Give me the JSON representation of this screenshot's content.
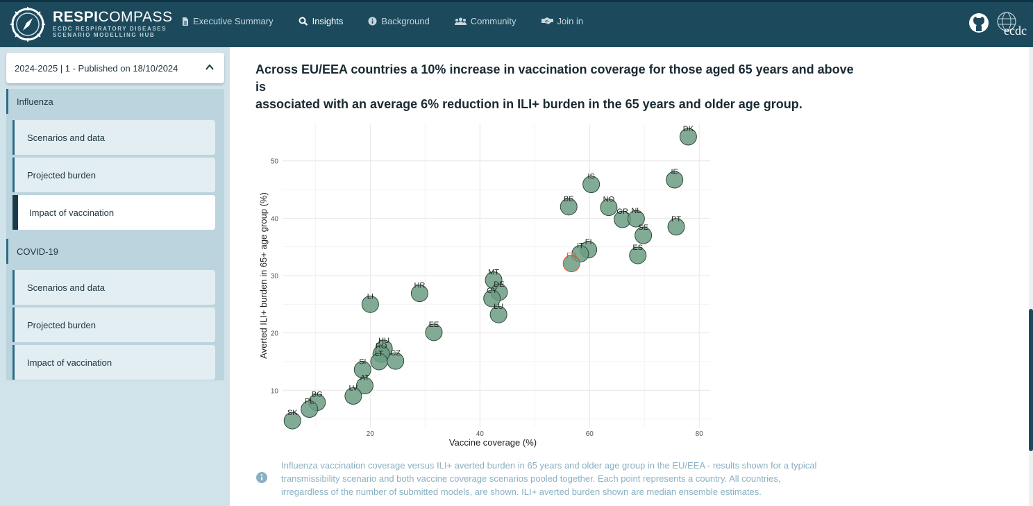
{
  "brand": {
    "name_bold": "RESPI",
    "name_light": "COMPASS",
    "sub1": "ECDC RESPIRATORY DISEASES",
    "sub2": "SCENARIO MODELLING HUB"
  },
  "nav": [
    {
      "label": "Executive Summary",
      "icon": "document-icon"
    },
    {
      "label": "Insights",
      "icon": "magnifier-icon"
    },
    {
      "label": "Background",
      "icon": "info-icon"
    },
    {
      "label": "Community",
      "icon": "people-icon"
    },
    {
      "label": "Join in",
      "icon": "handshake-icon"
    }
  ],
  "header_right": {
    "github": "github-icon",
    "ecdc": "ecdc"
  },
  "sidebar": {
    "dropdown": "2024-2025 | 1 - Published on 18/10/2024",
    "groups": [
      {
        "label": "Influenza",
        "items": [
          "Scenarios and data",
          "Projected burden",
          "Impact of vaccination"
        ]
      },
      {
        "label": "COVID-19",
        "items": [
          "Scenarios and data",
          "Projected burden",
          "Impact of vaccination"
        ]
      }
    ]
  },
  "main": {
    "headline_line1": "Across  EU/EEA countries a 10% increase in vaccination coverage for those aged 65 years and above is",
    "headline_line2": "associated with an average 6% reduction in  ILI+ burden in the 65 years and older age group.",
    "caption_line1": "Influenza vaccination coverage versus  ILI+ averted burden in 65 years and older age group in the  EU/EEA - results shown for a typical",
    "caption_line2": "transmissibility scenario and both vaccine coverage scenarios pooled together.  Each point represents a country. All countries,",
    "caption_line3": "irregardless of the number of submitted models, are shown.  ILI+ averted burden shown are median ensemble estimates."
  },
  "colors": {
    "header": "#1c4a5c",
    "point": "#6b9c82",
    "highlight": "#e64a2e"
  },
  "chart_data": {
    "type": "scatter",
    "xlabel": "Vaccine coverage (%)",
    "ylabel": "Averted ILI+ burden in 65+ age group (%)",
    "xlim": [
      4,
      82
    ],
    "ylim": [
      3.5,
      56.5
    ],
    "xticks": [
      20,
      40,
      60,
      80
    ],
    "yticks": [
      10,
      20,
      30,
      40,
      50
    ],
    "grid": true,
    "highlight": "FR",
    "points": [
      {
        "label": "DK",
        "x": 78.0,
        "y": 54.2
      },
      {
        "label": "IE",
        "x": 75.5,
        "y": 46.7
      },
      {
        "label": "IS",
        "x": 60.3,
        "y": 45.9
      },
      {
        "label": "BE",
        "x": 56.2,
        "y": 42.0
      },
      {
        "label": "NO",
        "x": 63.5,
        "y": 41.9
      },
      {
        "label": "GR",
        "x": 66.0,
        "y": 39.8
      },
      {
        "label": "NL",
        "x": 68.5,
        "y": 39.9
      },
      {
        "label": "PT",
        "x": 75.8,
        "y": 38.5
      },
      {
        "label": "SE",
        "x": 69.8,
        "y": 37.0
      },
      {
        "label": "FI",
        "x": 59.8,
        "y": 34.5
      },
      {
        "label": "IT",
        "x": 58.3,
        "y": 33.8
      },
      {
        "label": "ES",
        "x": 68.8,
        "y": 33.5
      },
      {
        "label": "FR",
        "x": 56.7,
        "y": 32.1
      },
      {
        "label": "MT",
        "x": 42.5,
        "y": 29.2
      },
      {
        "label": "DE",
        "x": 43.5,
        "y": 27.1
      },
      {
        "label": "CY",
        "x": 42.2,
        "y": 26.0
      },
      {
        "label": "HR",
        "x": 29.0,
        "y": 26.9
      },
      {
        "label": "LI",
        "x": 20.0,
        "y": 25.0
      },
      {
        "label": "LU",
        "x": 43.4,
        "y": 23.2
      },
      {
        "label": "EE",
        "x": 31.6,
        "y": 20.1
      },
      {
        "label": "HU",
        "x": 22.5,
        "y": 17.3
      },
      {
        "label": "RO",
        "x": 22.0,
        "y": 16.3
      },
      {
        "label": "LT",
        "x": 21.6,
        "y": 15.0
      },
      {
        "label": "CZ",
        "x": 24.6,
        "y": 15.1
      },
      {
        "label": "SI",
        "x": 18.6,
        "y": 13.6
      },
      {
        "label": "AT",
        "x": 19.0,
        "y": 10.8
      },
      {
        "label": "LV",
        "x": 16.9,
        "y": 9.0
      },
      {
        "label": "BG",
        "x": 10.3,
        "y": 7.9
      },
      {
        "label": "PL",
        "x": 8.9,
        "y": 6.7
      },
      {
        "label": "SK",
        "x": 5.8,
        "y": 4.7
      }
    ]
  }
}
